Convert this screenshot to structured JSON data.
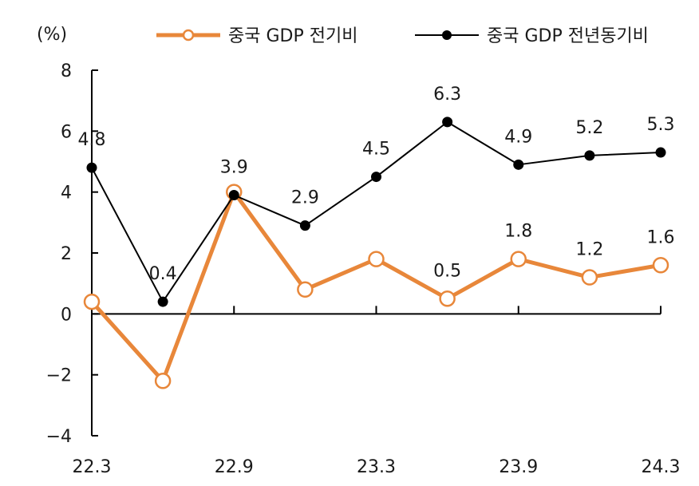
{
  "chart_data": {
    "type": "line",
    "unit_label": "(%)",
    "title": "",
    "xlabel": "",
    "ylabel": "",
    "ylim": [
      -4,
      8
    ],
    "yticks": [
      -4,
      -2,
      0,
      2,
      4,
      6,
      8
    ],
    "x": [
      "22.3",
      "22.6",
      "22.9",
      "22.12",
      "23.3",
      "23.6",
      "23.9",
      "23.12",
      "24.3"
    ],
    "x_tick_labels": [
      {
        "index": 0,
        "label": "22.3"
      },
      {
        "index": 2,
        "label": "22.9"
      },
      {
        "index": 4,
        "label": "23.3"
      },
      {
        "index": 6,
        "label": "23.9"
      },
      {
        "index": 8,
        "label": "24.3"
      }
    ],
    "legend_position": "top",
    "grid": false,
    "series": [
      {
        "name": "중국 GDP 전기비",
        "color": "#e8873a",
        "marker": "hollow-circle",
        "values": [
          0.4,
          -2.2,
          4.0,
          0.8,
          1.8,
          0.5,
          1.8,
          1.2,
          1.6
        ],
        "labels": [
          null,
          null,
          null,
          null,
          null,
          "0.5",
          "1.8",
          "1.2",
          "1.6"
        ]
      },
      {
        "name": "중국 GDP 전년동기비",
        "color": "#000000",
        "marker": "filled-circle",
        "values": [
          4.8,
          0.4,
          3.9,
          2.9,
          4.5,
          6.3,
          4.9,
          5.2,
          5.3
        ],
        "labels": [
          "4.8",
          "0.4",
          "3.9",
          "2.9",
          "4.5",
          "6.3",
          "4.9",
          "5.2",
          "5.3"
        ]
      }
    ]
  }
}
